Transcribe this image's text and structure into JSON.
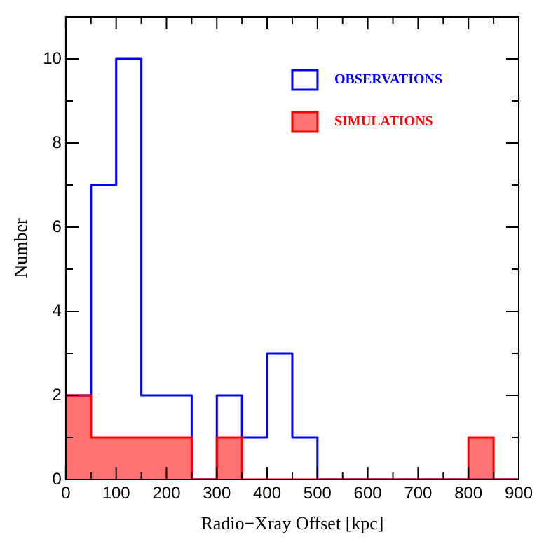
{
  "chart_data": {
    "type": "histogram",
    "xlabel": "Radio−Xray Offset [kpc]",
    "ylabel": "Number",
    "bins": [
      0,
      50,
      100,
      150,
      200,
      250,
      300,
      350,
      400,
      450,
      500,
      550,
      600,
      650,
      700,
      750,
      800,
      850,
      900
    ],
    "series": [
      {
        "name": "OBSERVATIONS",
        "color": "#0000ff",
        "values": [
          2,
          7,
          10,
          2,
          2,
          0,
          2,
          1,
          3,
          1,
          0,
          0,
          0,
          0,
          0,
          0,
          0,
          0
        ]
      },
      {
        "name": "SIMULATIONS",
        "color": "#ff0000",
        "values": [
          2,
          1,
          1,
          1,
          1,
          0,
          1,
          0,
          0,
          0,
          0,
          0,
          0,
          0,
          0,
          0,
          1,
          0
        ]
      }
    ],
    "xlim": [
      0,
      900
    ],
    "xticks": [
      0,
      {
        "value": 50,
        "label": null
      },
      100,
      {
        "value": 150,
        "label": null
      },
      200,
      {
        "value": 250,
        "label": null
      },
      300,
      {
        "value": 350,
        "label": null
      },
      400,
      {
        "value": 450,
        "label": null
      },
      500,
      {
        "value": 550,
        "label": null
      },
      600,
      {
        "value": 650,
        "label": null
      },
      700,
      {
        "value": 750,
        "label": null
      },
      800,
      {
        "value": 850,
        "label": null
      },
      900
    ],
    "ylim": [
      0,
      11
    ],
    "yticks": [
      0,
      {
        "value": 1,
        "label": null
      },
      2,
      {
        "value": 3,
        "label": null
      },
      4,
      {
        "value": 5,
        "label": null
      },
      6,
      {
        "value": 7,
        "label": null
      },
      8,
      {
        "value": 9,
        "label": null
      },
      10
    ],
    "grid": false,
    "legend": "top right"
  }
}
